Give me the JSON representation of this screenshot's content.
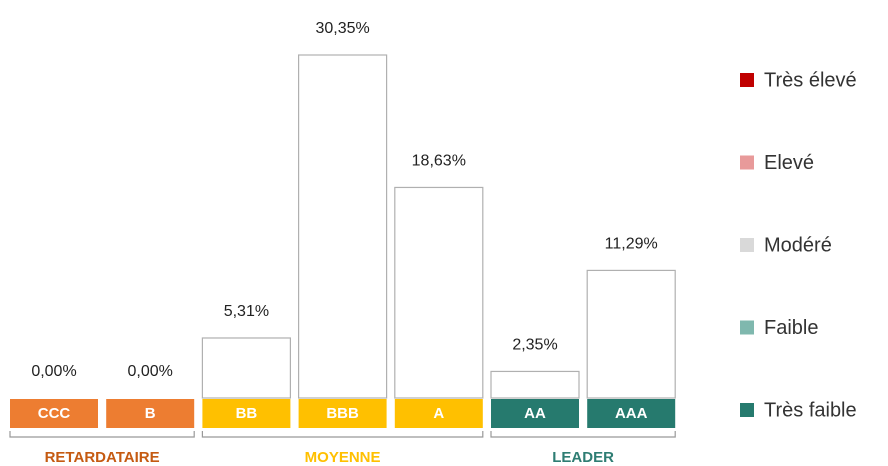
{
  "chart_data": {
    "type": "bar",
    "categories": [
      "CCC",
      "B",
      "BB",
      "BBB",
      "A",
      "AA",
      "AAA"
    ],
    "values": [
      0,
      0,
      5.31,
      30.35,
      18.63,
      2.35,
      11.29
    ],
    "value_labels": [
      "0,00%",
      "0,00%",
      "5,31%",
      "30,35%",
      "18,63%",
      "2,35%",
      "11,29%"
    ],
    "color": "#ffffff",
    "category_colors": [
      "#ed7d31",
      "#ed7d31",
      "#ffc000",
      "#ffc000",
      "#ffc000",
      "#267a6e",
      "#267a6e"
    ],
    "groups": [
      {
        "label": "RETARDATAIRE",
        "color": "#c55a11",
        "categories": [
          "CCC",
          "B"
        ]
      },
      {
        "label": "MOYENNE",
        "color": "#ffc000",
        "categories": [
          "BB",
          "BBB",
          "A"
        ]
      },
      {
        "label": "LEADER",
        "color": "#2e7d73",
        "categories": [
          "AA",
          "AAA"
        ]
      }
    ],
    "legend": {
      "position": "right",
      "items": [
        {
          "name": "Très élevé",
          "color": "#c00000"
        },
        {
          "name": "Elevé",
          "color": "#e89a9a"
        },
        {
          "name": "Modéré",
          "color": "#d9d9d9"
        },
        {
          "name": "Faible",
          "color": "#7fb8ae"
        },
        {
          "name": "Très faible",
          "color": "#267a6e"
        }
      ]
    }
  }
}
